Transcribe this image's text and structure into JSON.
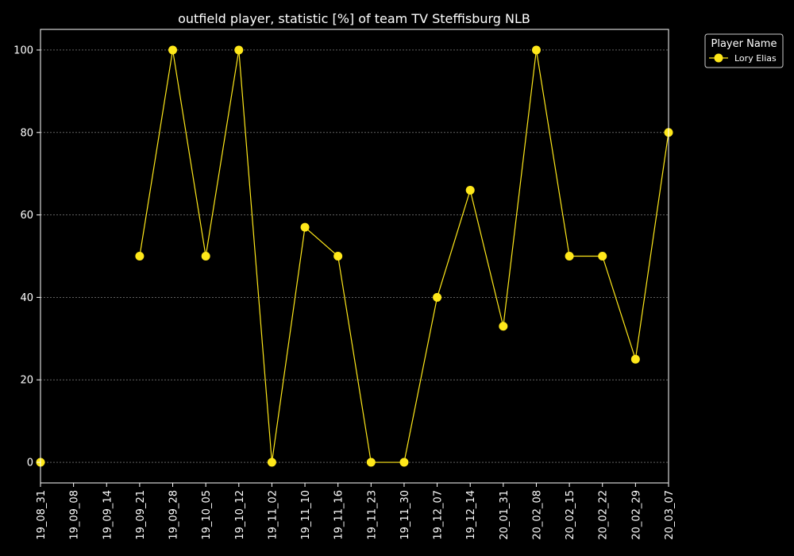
{
  "chart_data": {
    "type": "line",
    "title": "outfield player, statistic [%] of team TV Steffisburg NLB",
    "xlabel": "",
    "ylabel": "",
    "x": [
      "19_08_31",
      "19_09_08",
      "19_09_14",
      "19_09_21",
      "19_09_28",
      "19_10_05",
      "19_10_12",
      "19_11_02",
      "19_11_10",
      "19_11_16",
      "19_11_23",
      "19_11_30",
      "19_12_07",
      "19_12_14",
      "20_01_31",
      "20_02_08",
      "20_02_15",
      "20_02_22",
      "20_02_29",
      "20_03_07"
    ],
    "ylim": [
      -5,
      105
    ],
    "yticks": [
      0,
      20,
      40,
      60,
      80,
      100
    ],
    "grid": true,
    "legend": {
      "title": "Player Name",
      "placement": "outside-top-right"
    },
    "series": [
      {
        "name": "Lory Elias",
        "color": "#ffe81a",
        "values": [
          0,
          null,
          null,
          50,
          100,
          50,
          100,
          0,
          57,
          50,
          0,
          0,
          40,
          66,
          33,
          100,
          50,
          50,
          25,
          80
        ]
      }
    ]
  }
}
